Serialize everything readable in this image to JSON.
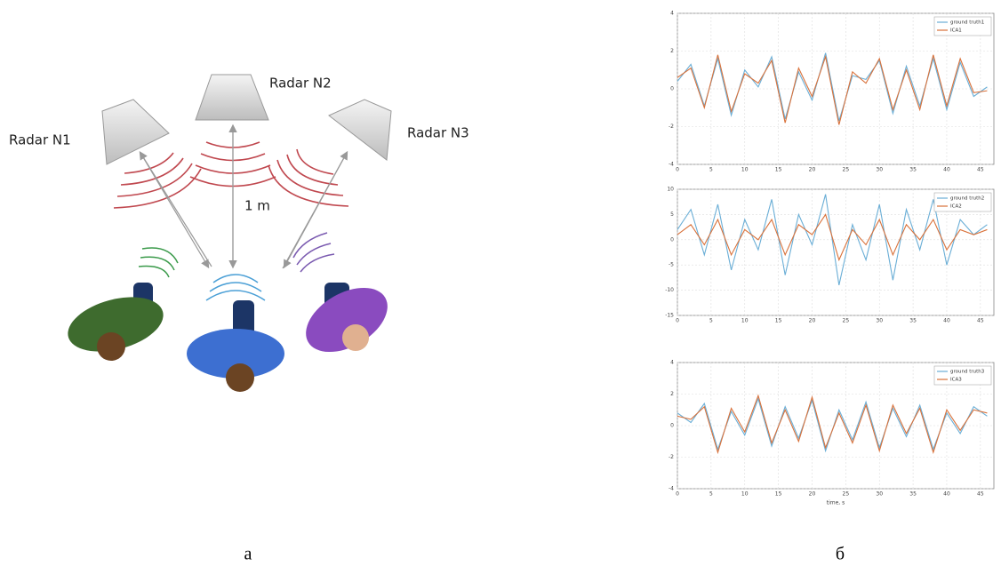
{
  "panel_a": {
    "radars": [
      "Radar N1",
      "Radar N2",
      "Radar N3"
    ],
    "distance": "1 m"
  },
  "captions": {
    "a": "а",
    "b": "б"
  },
  "chart_data": [
    {
      "type": "line",
      "x": [
        0,
        2,
        4,
        6,
        8,
        10,
        12,
        14,
        16,
        18,
        20,
        22,
        24,
        26,
        28,
        30,
        32,
        34,
        36,
        38,
        40,
        42,
        44,
        46
      ],
      "xlim": [
        0,
        47
      ],
      "xticks": [
        0,
        5,
        10,
        15,
        20,
        25,
        30,
        35,
        40,
        45
      ],
      "ylim": [
        -4,
        4
      ],
      "yticks": [
        -4,
        -2,
        0,
        2,
        4
      ],
      "grid": true,
      "legend": "upper right",
      "series": [
        {
          "name": "ground truth1",
          "color": "#6aaed6",
          "values": [
            0.4,
            1.3,
            -0.9,
            1.6,
            -1.4,
            1.0,
            0.1,
            1.7,
            -1.6,
            0.9,
            -0.6,
            1.9,
            -1.7,
            0.7,
            0.5,
            1.5,
            -1.3,
            1.2,
            -0.9,
            1.6,
            -1.1,
            1.4,
            -0.4,
            0.1
          ]
        },
        {
          "name": "ICA1",
          "color": "#d9713a",
          "values": [
            0.6,
            1.1,
            -1.0,
            1.8,
            -1.2,
            0.8,
            0.3,
            1.5,
            -1.8,
            1.1,
            -0.4,
            1.7,
            -1.9,
            0.9,
            0.3,
            1.6,
            -1.1,
            1.0,
            -1.1,
            1.8,
            -0.9,
            1.6,
            -0.2,
            -0.1
          ]
        }
      ]
    },
    {
      "type": "line",
      "x": [
        0,
        2,
        4,
        6,
        8,
        10,
        12,
        14,
        16,
        18,
        20,
        22,
        24,
        26,
        28,
        30,
        32,
        34,
        36,
        38,
        40,
        42,
        44,
        46
      ],
      "xlim": [
        0,
        47
      ],
      "xticks": [
        0,
        5,
        10,
        15,
        20,
        25,
        30,
        35,
        40,
        45
      ],
      "ylim": [
        -15,
        10
      ],
      "yticks": [
        -15,
        -10,
        -5,
        0,
        5,
        10
      ],
      "grid": true,
      "legend": "upper right",
      "series": [
        {
          "name": "ground truth2",
          "color": "#6aaed6",
          "values": [
            2,
            6,
            -3,
            7,
            -6,
            4,
            -2,
            8,
            -7,
            5,
            -1,
            9,
            -9,
            3,
            -4,
            7,
            -8,
            6,
            -2,
            8,
            -5,
            4,
            1,
            3
          ]
        },
        {
          "name": "ICA2",
          "color": "#d9713a",
          "values": [
            1,
            3,
            -1,
            4,
            -3,
            2,
            0,
            4,
            -3,
            3,
            1,
            5,
            -4,
            2,
            -1,
            4,
            -3,
            3,
            0,
            4,
            -2,
            2,
            1,
            2
          ]
        }
      ]
    },
    {
      "type": "line",
      "x": [
        0,
        2,
        4,
        6,
        8,
        10,
        12,
        14,
        16,
        18,
        20,
        22,
        24,
        26,
        28,
        30,
        32,
        34,
        36,
        38,
        40,
        42,
        44,
        46
      ],
      "xlim": [
        0,
        47
      ],
      "xticks": [
        0,
        5,
        10,
        15,
        20,
        25,
        30,
        35,
        40,
        45
      ],
      "ylim": [
        -4,
        4
      ],
      "yticks": [
        -4,
        -2,
        0,
        2,
        4
      ],
      "grid": true,
      "legend": "upper right",
      "xlabel": "time, s",
      "series": [
        {
          "name": "ground truth3",
          "color": "#6aaed6",
          "values": [
            0.8,
            0.2,
            1.4,
            -1.5,
            0.9,
            -0.6,
            1.7,
            -1.3,
            1.2,
            -0.8,
            1.6,
            -1.6,
            1.0,
            -0.9,
            1.5,
            -1.4,
            1.1,
            -0.7,
            1.3,
            -1.5,
            0.8,
            -0.5,
            1.2,
            0.6
          ]
        },
        {
          "name": "ICA3",
          "color": "#d9713a",
          "values": [
            0.6,
            0.4,
            1.2,
            -1.7,
            1.1,
            -0.4,
            1.9,
            -1.1,
            1.0,
            -1.0,
            1.8,
            -1.4,
            0.8,
            -1.1,
            1.3,
            -1.6,
            1.3,
            -0.5,
            1.1,
            -1.7,
            1.0,
            -0.3,
            1.0,
            0.8
          ]
        }
      ]
    }
  ]
}
